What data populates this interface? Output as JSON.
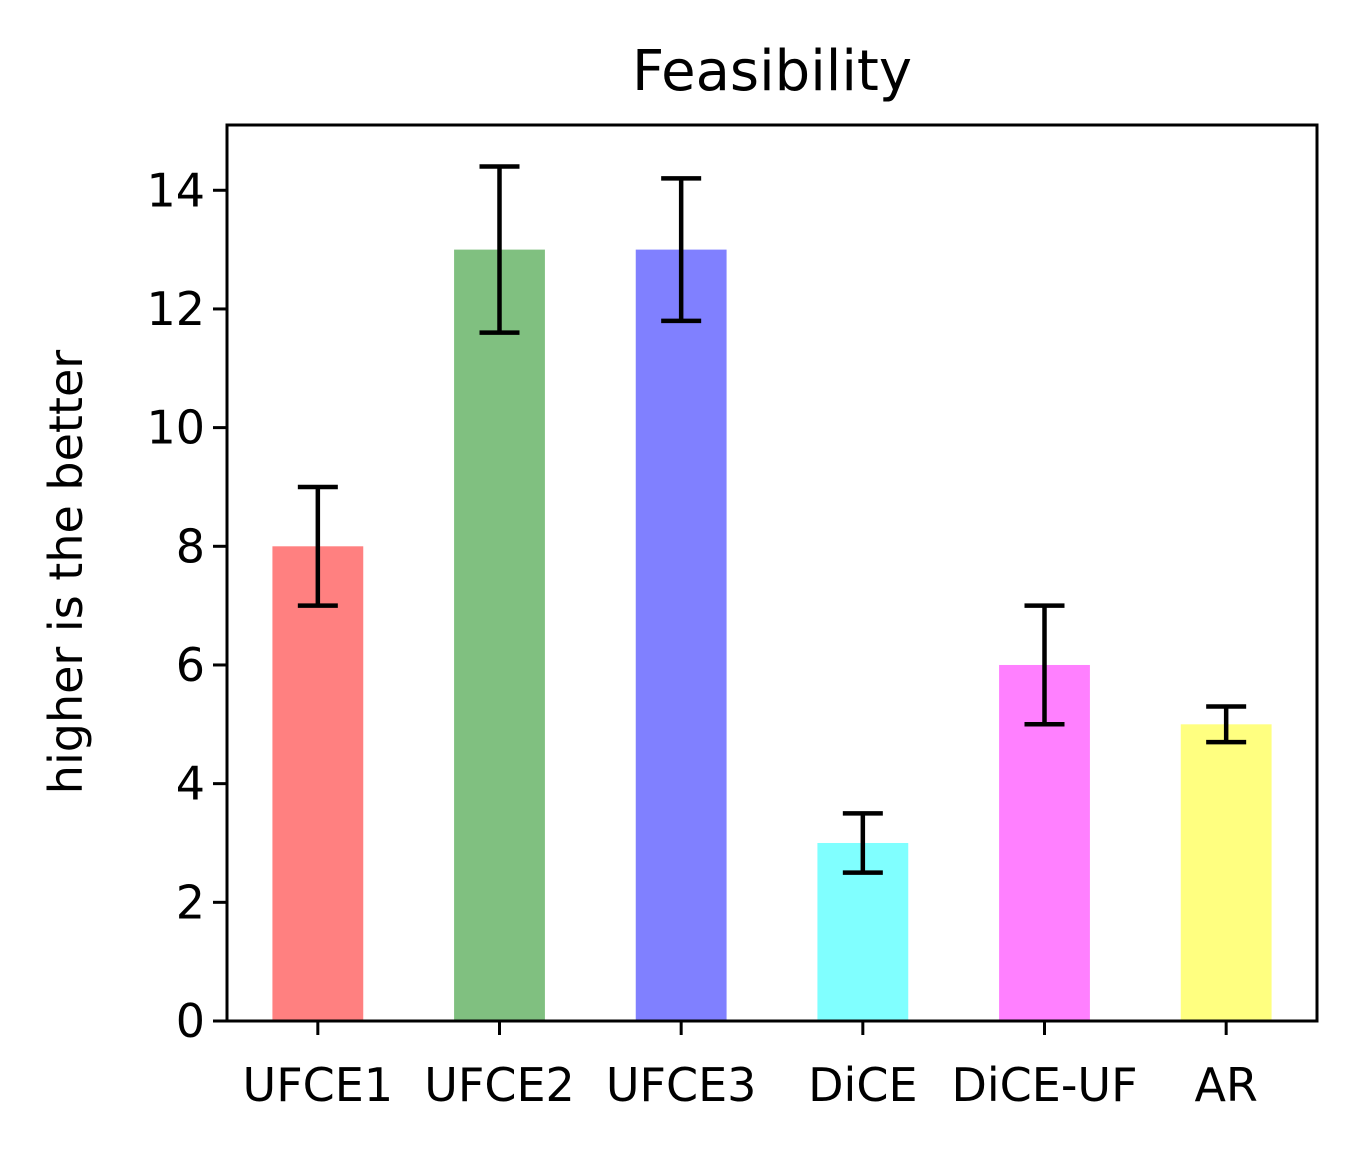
{
  "chart_data": {
    "type": "bar",
    "title": "Feasibility",
    "xlabel": "",
    "ylabel": "higher is the better",
    "categories": [
      "UFCE1",
      "UFCE2",
      "UFCE3",
      "DiCE",
      "DiCE-UF",
      "AR"
    ],
    "values": [
      8,
      13,
      13,
      3,
      6,
      5
    ],
    "errors": [
      1.0,
      1.4,
      1.2,
      0.5,
      1.0,
      0.3
    ],
    "colors": [
      "#ff8080",
      "#80c080",
      "#8080ff",
      "#80ffff",
      "#ff80ff",
      "#ffff80"
    ],
    "ylim": [
      0,
      15.1
    ],
    "yticks": [
      "0",
      "2",
      "4",
      "6",
      "8",
      "10",
      "12",
      "14"
    ],
    "grid": false,
    "legend": "none"
  }
}
